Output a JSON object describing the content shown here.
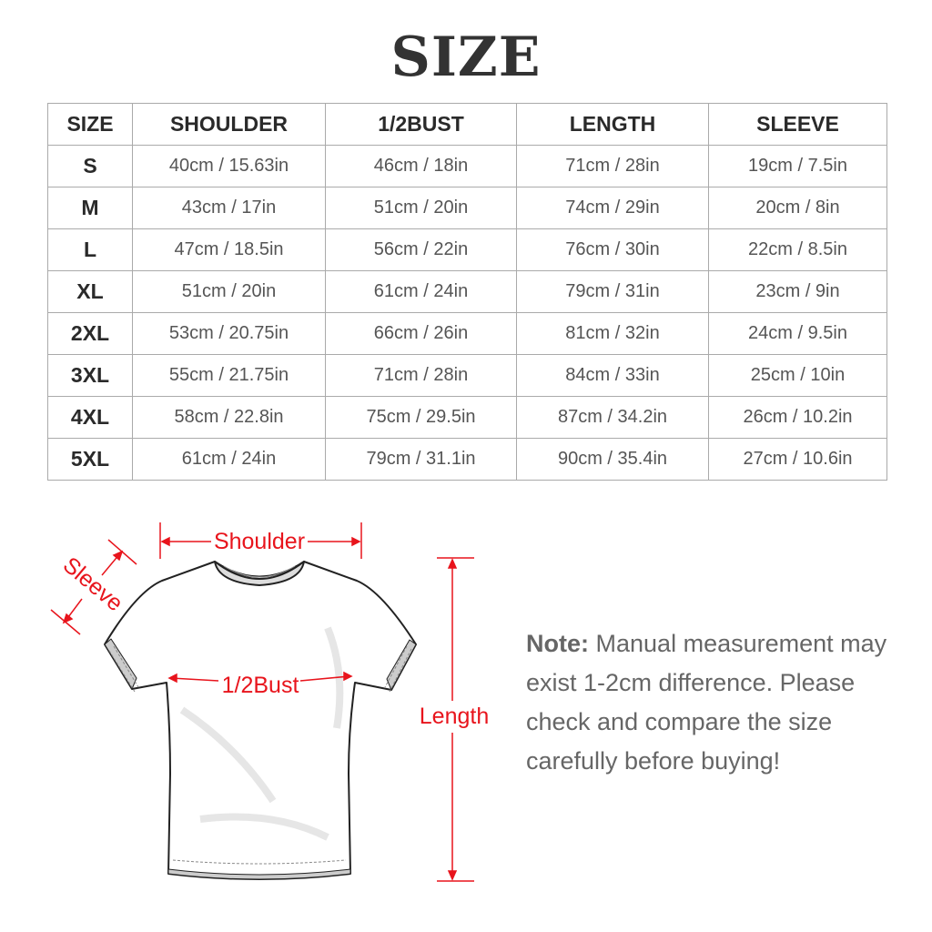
{
  "title": "SIZE",
  "table": {
    "headers": [
      "SIZE",
      "SHOULDER",
      "1/2BUST",
      "LENGTH",
      "SLEEVE"
    ],
    "rows": [
      [
        "S",
        "40cm / 15.63in",
        "46cm / 18in",
        "71cm / 28in",
        "19cm / 7.5in"
      ],
      [
        "M",
        "43cm / 17in",
        "51cm / 20in",
        "74cm / 29in",
        "20cm / 8in"
      ],
      [
        "L",
        "47cm / 18.5in",
        "56cm / 22in",
        "76cm / 30in",
        "22cm / 8.5in"
      ],
      [
        "XL",
        "51cm / 20in",
        "61cm / 24in",
        "79cm / 31in",
        "23cm / 9in"
      ],
      [
        "2XL",
        "53cm / 20.75in",
        "66cm / 26in",
        "81cm / 32in",
        "24cm / 9.5in"
      ],
      [
        "3XL",
        "55cm / 21.75in",
        "71cm / 28in",
        "84cm / 33in",
        "25cm / 10in"
      ],
      [
        "4XL",
        "58cm / 22.8in",
        "75cm / 29.5in",
        "87cm / 34.2in",
        "26cm / 10.2in"
      ],
      [
        "5XL",
        "61cm / 24in",
        "79cm / 31.1in",
        "90cm / 35.4in",
        "27cm / 10.6in"
      ]
    ]
  },
  "diagram": {
    "labels": {
      "shoulder": "Shoulder",
      "sleeve": "Sleeve",
      "bust": "1/2Bust",
      "length": "Length"
    },
    "accent_color": "#e8141c"
  },
  "note": {
    "label": "Note:",
    "text": "Manual measurement may exist 1-2cm difference. Please check and compare the size carefully before buying!"
  }
}
